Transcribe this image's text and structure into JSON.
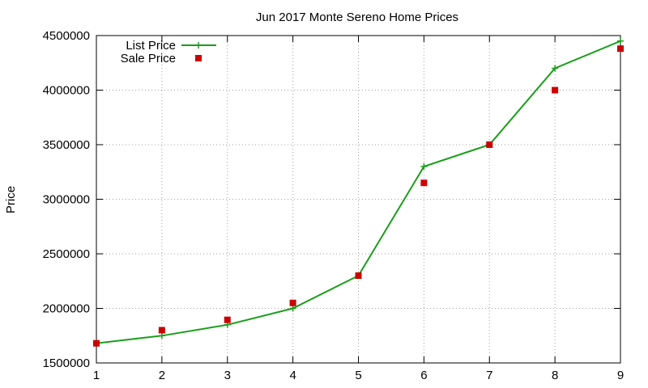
{
  "chart_data": {
    "type": "line",
    "title": "Jun 2017 Monte Sereno Home Prices",
    "xlabel": "",
    "ylabel": "Price",
    "x": [
      1,
      2,
      3,
      4,
      5,
      6,
      7,
      8,
      9
    ],
    "xlim": [
      1,
      9
    ],
    "ylim": [
      1500000,
      4500000
    ],
    "x_ticks": [
      "1",
      "2",
      "3",
      "4",
      "5",
      "6",
      "7",
      "8",
      "9"
    ],
    "y_ticks": [
      "1500000",
      "2000000",
      "2500000",
      "3000000",
      "3500000",
      "4000000",
      "4500000"
    ],
    "grid": true,
    "legend_position": "top-left",
    "series": [
      {
        "name": "List Price",
        "style": "line-with-plus-markers",
        "color": "#1a9e1a",
        "values": [
          1680000,
          1750000,
          1850000,
          2000000,
          2300000,
          3300000,
          3500000,
          4200000,
          4450000
        ]
      },
      {
        "name": "Sale Price",
        "style": "square-markers",
        "color": "#cc0000",
        "values": [
          1680000,
          1800000,
          1895000,
          2050000,
          2300000,
          3150000,
          3500000,
          4000000,
          4380000
        ]
      }
    ]
  }
}
